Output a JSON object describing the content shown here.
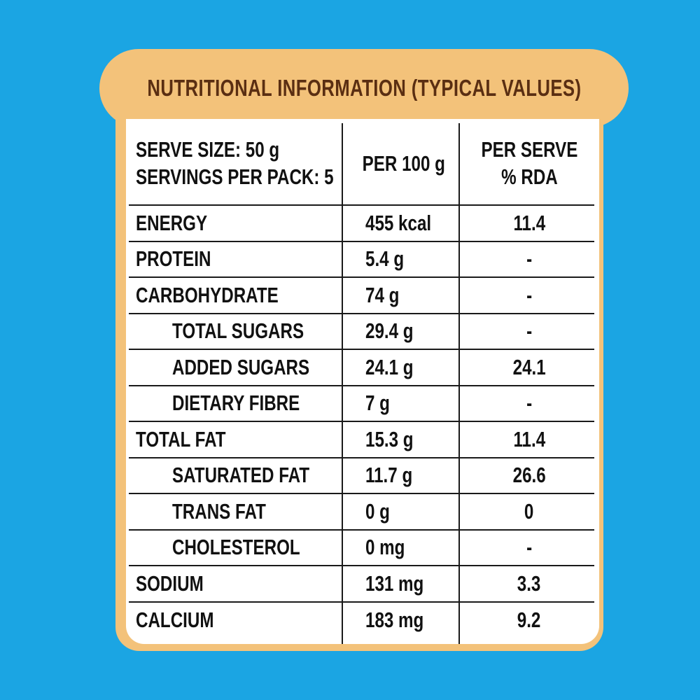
{
  "title": "NUTRITIONAL INFORMATION (TYPICAL VALUES)",
  "header": {
    "serve_size": "SERVE SIZE: 50 g",
    "servings": "SERVINGS PER PACK: 5",
    "col1": "PER 100 g",
    "col2_line1": "PER SERVE",
    "col2_line2": "% RDA"
  },
  "rows": [
    {
      "name": "ENERGY",
      "per100": "455 kcal",
      "rda": "11.4"
    },
    {
      "name": "PROTEIN",
      "per100": "5.4 g",
      "rda": "-"
    },
    {
      "name": "CARBOHYDRATE",
      "per100": "74 g",
      "rda": "-"
    },
    {
      "name": "TOTAL SUGARS",
      "per100": "29.4 g",
      "rda": "-"
    },
    {
      "name": "ADDED SUGARS",
      "per100": "24.1 g",
      "rda": "24.1"
    },
    {
      "name": "DIETARY FIBRE",
      "per100": "7 g",
      "rda": "-"
    },
    {
      "name": "TOTAL FAT",
      "per100": "15.3 g",
      "rda": "11.4"
    },
    {
      "name": "SATURATED FAT",
      "per100": "11.7 g",
      "rda": "26.6"
    },
    {
      "name": "TRANS FAT",
      "per100": "0 g",
      "rda": "0"
    },
    {
      "name": "CHOLESTEROL",
      "per100": "0 mg",
      "rda": "-"
    },
    {
      "name": "SODIUM",
      "per100": "131 mg",
      "rda": "3.3"
    },
    {
      "name": "CALCIUM",
      "per100": "183 mg",
      "rda": "9.2"
    }
  ]
}
